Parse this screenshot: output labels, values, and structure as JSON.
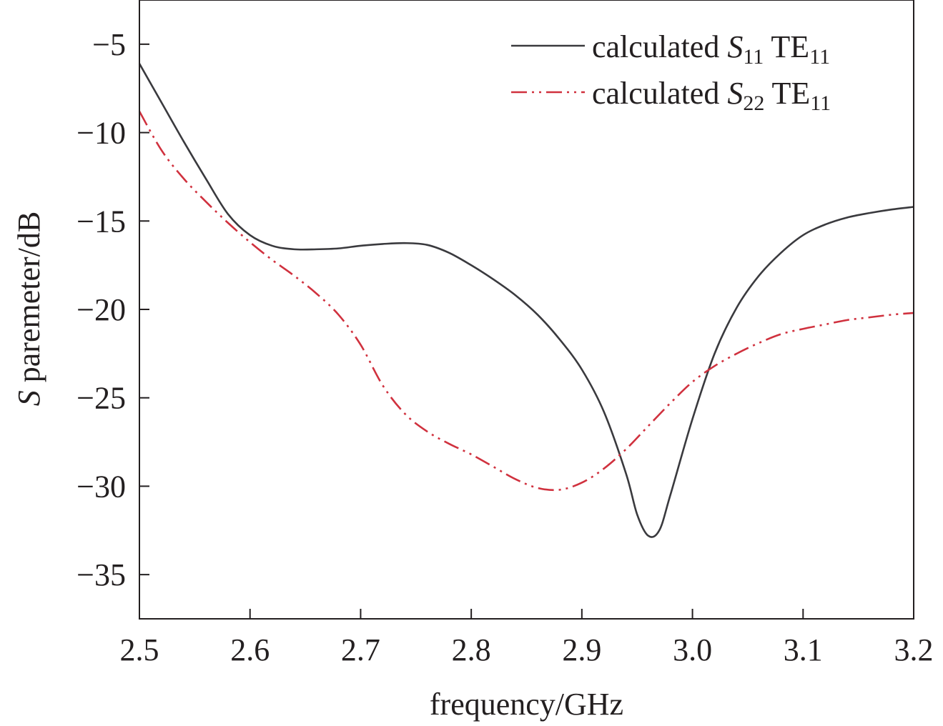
{
  "chart_data": {
    "type": "line",
    "title": "",
    "xlabel": "frequency/GHz",
    "ylabel_italic": "S",
    "ylabel_rest": " paremeter/dB",
    "xlim": [
      2.5,
      3.2
    ],
    "ylim": [
      -37.5,
      -2.5
    ],
    "x_ticks": [
      2.5,
      2.6,
      2.7,
      2.8,
      2.9,
      3.0,
      3.1,
      3.2
    ],
    "x_tick_labels": [
      "2.5",
      "2.6",
      "2.7",
      "2.8",
      "2.9",
      "3.0",
      "3.1",
      "3.2"
    ],
    "y_ticks": [
      -5,
      -10,
      -15,
      -20,
      -25,
      -30,
      -35
    ],
    "y_tick_labels": [
      "−5",
      "−10",
      "−15",
      "−20",
      "−25",
      "−30",
      "−35"
    ],
    "grid": false,
    "legend_position": "top-right",
    "series": [
      {
        "legend_prefix": "calculated ",
        "legend_S": "S",
        "legend_S_sub": "11",
        "legend_mode": " TE",
        "legend_mode_sub": "11",
        "color": "#3a3a3e",
        "dash": "solid",
        "x": [
          2.5,
          2.52,
          2.54,
          2.56,
          2.58,
          2.6,
          2.62,
          2.64,
          2.66,
          2.68,
          2.7,
          2.72,
          2.74,
          2.76,
          2.78,
          2.8,
          2.82,
          2.84,
          2.86,
          2.88,
          2.9,
          2.92,
          2.94,
          2.95,
          2.96,
          2.97,
          2.98,
          3.0,
          3.02,
          3.04,
          3.06,
          3.08,
          3.1,
          3.12,
          3.14,
          3.16,
          3.18,
          3.2
        ],
        "y": [
          -6.1,
          -8.3,
          -10.5,
          -12.6,
          -14.6,
          -15.8,
          -16.4,
          -16.6,
          -16.6,
          -16.55,
          -16.4,
          -16.3,
          -16.25,
          -16.35,
          -16.8,
          -17.5,
          -18.3,
          -19.2,
          -20.3,
          -21.7,
          -23.4,
          -25.8,
          -29.3,
          -31.6,
          -32.8,
          -32.5,
          -30.5,
          -26.2,
          -22.5,
          -19.9,
          -18.1,
          -16.8,
          -15.8,
          -15.2,
          -14.8,
          -14.55,
          -14.35,
          -14.2
        ]
      },
      {
        "legend_prefix": "calculated ",
        "legend_S": "S",
        "legend_S_sub": "22",
        "legend_mode": " TE",
        "legend_mode_sub": "11",
        "color": "#d0313e",
        "dash": "dashdotdot",
        "x": [
          2.5,
          2.52,
          2.54,
          2.56,
          2.58,
          2.6,
          2.62,
          2.64,
          2.66,
          2.68,
          2.7,
          2.72,
          2.74,
          2.76,
          2.78,
          2.8,
          2.82,
          2.84,
          2.86,
          2.88,
          2.9,
          2.92,
          2.94,
          2.96,
          2.98,
          3.0,
          3.02,
          3.04,
          3.06,
          3.08,
          3.1,
          3.12,
          3.14,
          3.16,
          3.18,
          3.2
        ],
        "y": [
          -8.8,
          -11.0,
          -12.6,
          -13.9,
          -15.1,
          -16.2,
          -17.2,
          -18.1,
          -19.1,
          -20.3,
          -22.0,
          -24.3,
          -25.9,
          -26.9,
          -27.6,
          -28.2,
          -28.9,
          -29.6,
          -30.1,
          -30.2,
          -29.8,
          -29.0,
          -27.9,
          -26.6,
          -25.3,
          -24.1,
          -23.2,
          -22.5,
          -21.9,
          -21.4,
          -21.1,
          -20.85,
          -20.6,
          -20.45,
          -20.3,
          -20.2
        ]
      }
    ]
  }
}
